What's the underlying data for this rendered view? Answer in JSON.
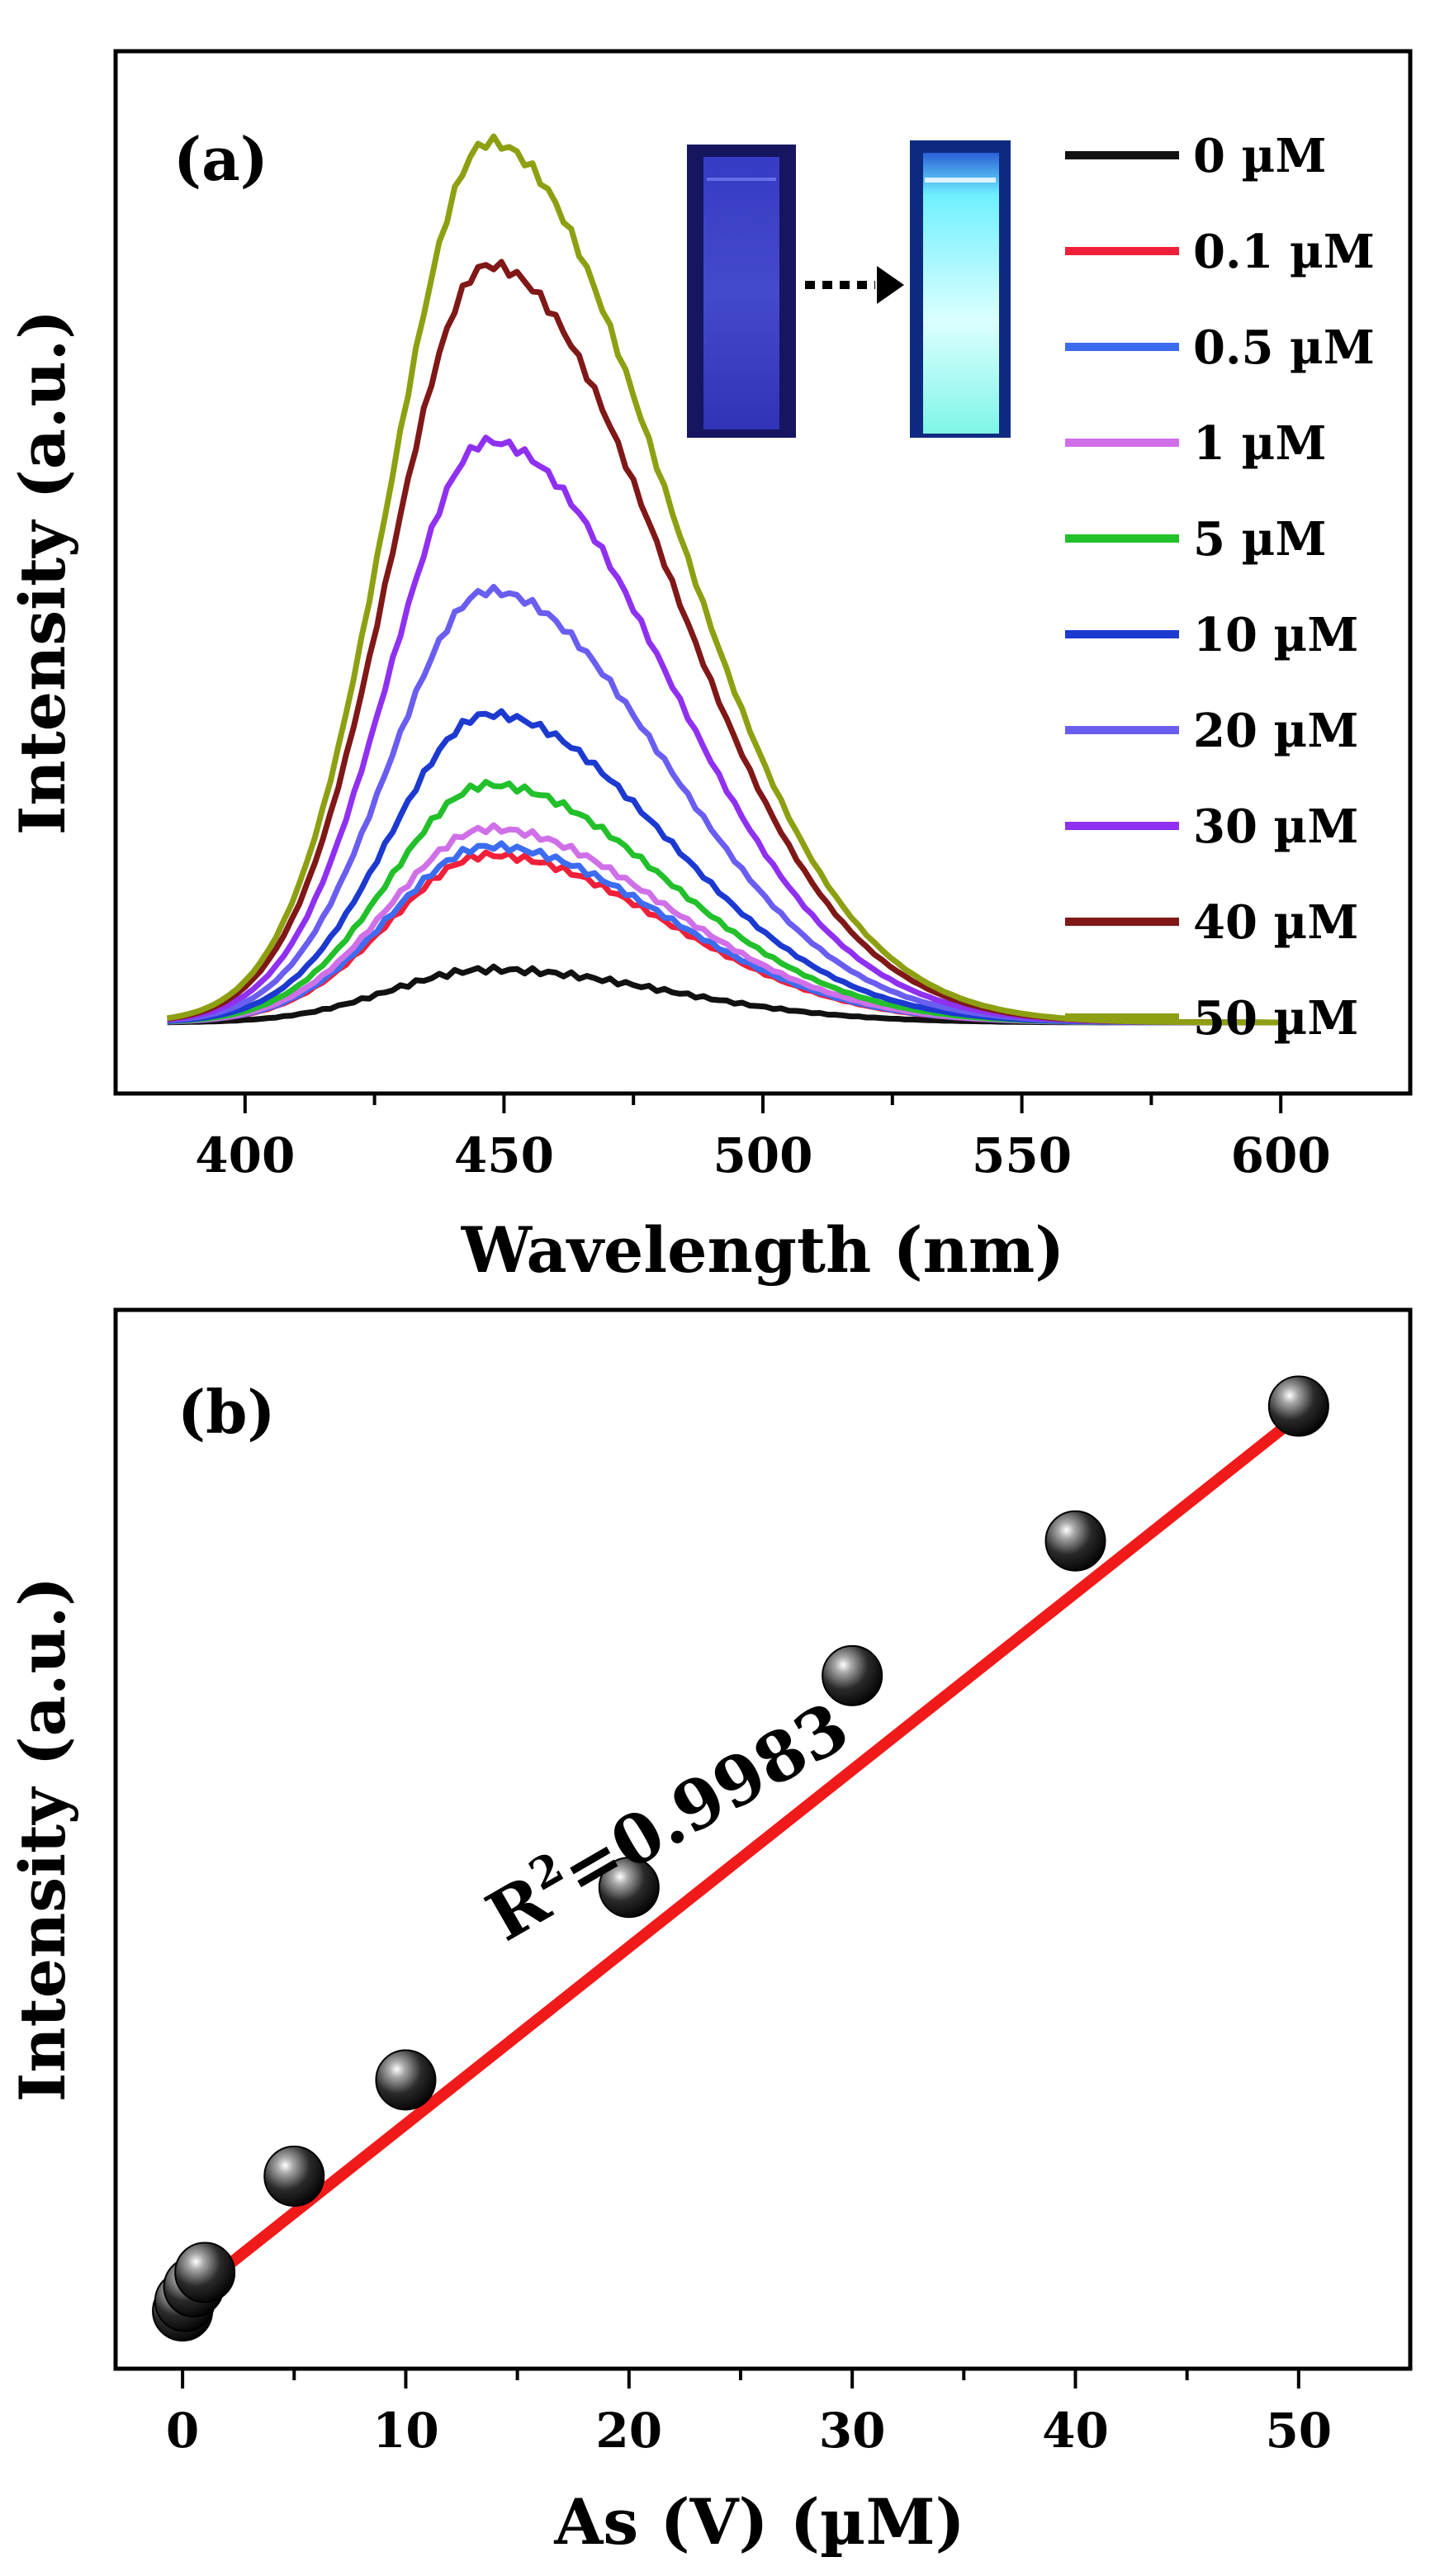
{
  "colors": {
    "0 µM": "#111111",
    "0.1 µM": "#f0203a",
    "0.5 µM": "#3c6cf0",
    "1 µM": "#d070e8",
    "5 µM": "#22c02a",
    "10 µM": "#1c3ad0",
    "20 µM": "#6a5ef0",
    "30 µM": "#9030f0",
    "40 µM": "#801818",
    "50 µM": "#8ea012",
    "fit": "#f01a1a"
  },
  "chart_data": [
    {
      "type": "line",
      "panel_label": "(a)",
      "xlabel": "Wavelength (nm)",
      "ylabel": "Intensity (a.u.)",
      "xlim": [
        375,
        625
      ],
      "ylim": [
        0,
        1.08
      ],
      "x_ticks": [
        400,
        450,
        500,
        550,
        600
      ],
      "y_ticks_shown": false,
      "legend_position": "right",
      "inset": "cuvette photos: dim blue (left) arrow to bright cyan fluorescence (right)",
      "curve_range": [
        385,
        600
      ],
      "peak_center_nm": 447,
      "series": [
        {
          "name": "0 µM",
          "peak_intensity": 0.06
        },
        {
          "name": "0.1 µM",
          "peak_intensity": 0.19
        },
        {
          "name": "0.5 µM",
          "peak_intensity": 0.2
        },
        {
          "name": "1 µM",
          "peak_intensity": 0.22
        },
        {
          "name": "5 µM",
          "peak_intensity": 0.27
        },
        {
          "name": "10 µM",
          "peak_intensity": 0.35
        },
        {
          "name": "20 µM",
          "peak_intensity": 0.49
        },
        {
          "name": "30 µM",
          "peak_intensity": 0.66
        },
        {
          "name": "40 µM",
          "peak_intensity": 0.86
        },
        {
          "name": "50 µM",
          "peak_intensity": 1.0
        }
      ]
    },
    {
      "type": "scatter",
      "panel_label": "(b)",
      "xlabel": "As (V) (µM)",
      "ylabel": "Intensity (a.u.)",
      "xlim": [
        -3,
        55
      ],
      "ylim": [
        0,
        1.1
      ],
      "x_ticks": [
        0,
        10,
        20,
        30,
        40,
        50
      ],
      "y_ticks_shown": false,
      "points": [
        {
          "x": 0,
          "y": 0.06
        },
        {
          "x": 0.1,
          "y": 0.07
        },
        {
          "x": 0.5,
          "y": 0.085
        },
        {
          "x": 1,
          "y": 0.1
        },
        {
          "x": 5,
          "y": 0.2
        },
        {
          "x": 10,
          "y": 0.3
        },
        {
          "x": 20,
          "y": 0.5
        },
        {
          "x": 30,
          "y": 0.72
        },
        {
          "x": 40,
          "y": 0.86
        },
        {
          "x": 50,
          "y": 1.0
        }
      ],
      "fit": {
        "type": "linear",
        "x_range": [
          0,
          50
        ],
        "y_start": 0.07,
        "y_end": 0.99
      },
      "annotation": {
        "base": "R",
        "superscript": "2",
        "rest": "=0.9983"
      }
    }
  ]
}
